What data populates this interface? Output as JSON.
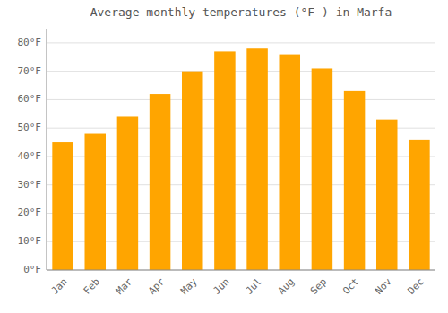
{
  "chart_data": {
    "type": "bar",
    "title": "Average monthly temperatures (°F ) in Marfa",
    "categories": [
      "Jan",
      "Feb",
      "Mar",
      "Apr",
      "May",
      "Jun",
      "Jul",
      "Aug",
      "Sep",
      "Oct",
      "Nov",
      "Dec"
    ],
    "values": [
      45,
      48,
      54,
      62,
      70,
      77,
      78,
      76,
      71,
      63,
      53,
      46
    ],
    "color": "#FFA500",
    "ylim": [
      0,
      85
    ],
    "yticks": [
      {
        "value": 0,
        "label": "0°F"
      },
      {
        "value": 10,
        "label": "10°F"
      },
      {
        "value": 20,
        "label": "20°F"
      },
      {
        "value": 30,
        "label": "30°F"
      },
      {
        "value": 40,
        "label": "40°F"
      },
      {
        "value": 50,
        "label": "50°F"
      },
      {
        "value": 60,
        "label": "60°F"
      },
      {
        "value": 70,
        "label": "70°F"
      },
      {
        "value": 80,
        "label": "80°F"
      }
    ],
    "grid": true
  }
}
